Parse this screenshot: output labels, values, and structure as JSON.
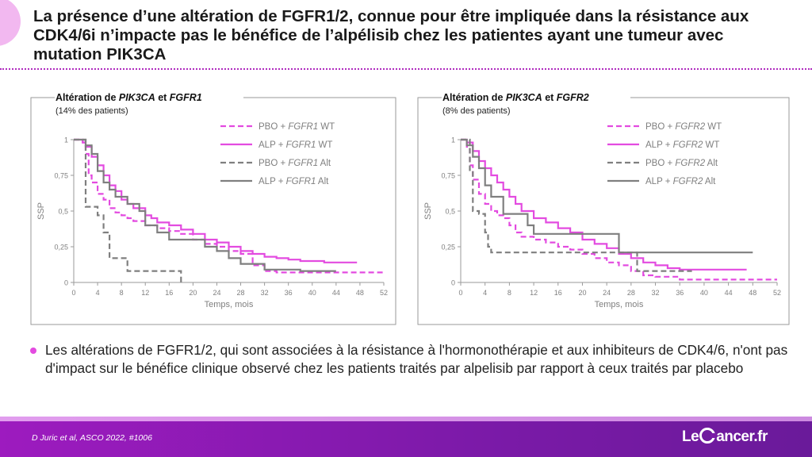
{
  "title": "La présence d’une altération de FGFR1/2, connue pour être impliquée dans la résistance aux CDK4/6i n’impacte pas le bénéfice de l’alpélisib chez les patientes ayant une tumeur avec mutation PIK3CA",
  "bullet": "Les altérations de FGFR1/2, qui sont associées à la résistance à l'hormonothérapie et aux inhibiteurs de CDK4/6, n'ont pas d'impact sur le bénéfice clinique observé chez les patients traités par alpelisib par rapport à ceux traités par placebo",
  "citation": "D Juric et al, ASCO 2022, #1006",
  "logo": {
    "left": "Le",
    "right": "ancer.fr"
  },
  "colors": {
    "pbo_wt": "#e34be0",
    "alp_wt": "#e34be0",
    "pbo_alt": "#7f7f7f",
    "alp_alt": "#7f7f7f",
    "accent": "#b02bbf",
    "footer": "#7b1aa8"
  },
  "chart_data": [
    {
      "type": "line",
      "title_parts": [
        [
          "Altération de ",
          false
        ],
        [
          "PIK3CA",
          true
        ],
        [
          " et ",
          false
        ],
        [
          "FGFR1",
          true
        ]
      ],
      "subtitle": "(14% des patients)",
      "xlabel": "Temps, mois",
      "ylabel": "SSP",
      "xlim": [
        0,
        52
      ],
      "ylim": [
        0,
        1
      ],
      "xticks": [
        "0",
        "4",
        "8",
        "12",
        "16",
        "20",
        "24",
        "28",
        "32",
        "36",
        "40",
        "44",
        "48",
        "52"
      ],
      "yticks": [
        "0",
        "0,25",
        "0,5",
        "0,75",
        "1"
      ],
      "legend_position": "top-right",
      "series": [
        {
          "name": "PBO + FGFR1 WT",
          "label_parts": [
            [
              "PBO + ",
              false
            ],
            [
              "FGFR1",
              true
            ],
            [
              " WT",
              false
            ]
          ],
          "style": "pbo_wt",
          "points": [
            [
              0,
              1
            ],
            [
              1.5,
              0.98
            ],
            [
              2,
              0.9
            ],
            [
              2.5,
              0.75
            ],
            [
              3,
              0.7
            ],
            [
              4,
              0.62
            ],
            [
              5,
              0.58
            ],
            [
              6,
              0.52
            ],
            [
              7,
              0.49
            ],
            [
              8,
              0.47
            ],
            [
              9,
              0.45
            ],
            [
              10,
              0.43
            ],
            [
              12,
              0.4
            ],
            [
              14,
              0.38
            ],
            [
              16,
              0.36
            ],
            [
              18,
              0.34
            ],
            [
              20,
              0.3
            ],
            [
              22,
              0.27
            ],
            [
              24,
              0.25
            ],
            [
              26,
              0.22
            ],
            [
              28,
              0.2
            ],
            [
              30,
              0.12
            ],
            [
              32,
              0.08
            ],
            [
              34,
              0.07
            ],
            [
              38,
              0.07
            ],
            [
              44,
              0.07
            ],
            [
              52,
              0.07
            ]
          ]
        },
        {
          "name": "ALP + FGFR1 WT",
          "label_parts": [
            [
              "ALP + ",
              false
            ],
            [
              "FGFR1",
              true
            ],
            [
              " WT",
              false
            ]
          ],
          "style": "alp_wt",
          "points": [
            [
              0,
              1
            ],
            [
              1.5,
              0.98
            ],
            [
              2,
              0.95
            ],
            [
              3,
              0.88
            ],
            [
              4,
              0.82
            ],
            [
              5,
              0.75
            ],
            [
              6,
              0.68
            ],
            [
              7,
              0.64
            ],
            [
              8,
              0.58
            ],
            [
              9,
              0.55
            ],
            [
              10,
              0.52
            ],
            [
              12,
              0.47
            ],
            [
              13,
              0.45
            ],
            [
              14,
              0.42
            ],
            [
              16,
              0.4
            ],
            [
              18,
              0.37
            ],
            [
              20,
              0.34
            ],
            [
              22,
              0.3
            ],
            [
              24,
              0.28
            ],
            [
              26,
              0.25
            ],
            [
              28,
              0.22
            ],
            [
              30,
              0.2
            ],
            [
              32,
              0.18
            ],
            [
              34,
              0.17
            ],
            [
              36,
              0.16
            ],
            [
              38,
              0.15
            ],
            [
              42,
              0.14
            ],
            [
              47.5,
              0.14
            ]
          ]
        },
        {
          "name": "PBO + FGFR1 Alt",
          "label_parts": [
            [
              "PBO + ",
              false
            ],
            [
              "FGFR1",
              true
            ],
            [
              " Alt",
              false
            ]
          ],
          "style": "pbo_alt",
          "points": [
            [
              0,
              1
            ],
            [
              1.5,
              1
            ],
            [
              2,
              0.53
            ],
            [
              4,
              0.53
            ],
            [
              4,
              0.47
            ],
            [
              5,
              0.35
            ],
            [
              6,
              0.17
            ],
            [
              9,
              0.08
            ],
            [
              13,
              0.08
            ],
            [
              18,
              0.08
            ],
            [
              18,
              0
            ]
          ]
        },
        {
          "name": "ALP + FGFR1 Alt",
          "label_parts": [
            [
              "ALP + ",
              false
            ],
            [
              "FGFR1",
              true
            ],
            [
              " Alt",
              false
            ]
          ],
          "style": "alp_alt",
          "points": [
            [
              0,
              1
            ],
            [
              2,
              0.96
            ],
            [
              3,
              0.9
            ],
            [
              4,
              0.78
            ],
            [
              5,
              0.7
            ],
            [
              6,
              0.65
            ],
            [
              7,
              0.6
            ],
            [
              9,
              0.55
            ],
            [
              11,
              0.5
            ],
            [
              12,
              0.4
            ],
            [
              14,
              0.35
            ],
            [
              16,
              0.3
            ],
            [
              20,
              0.3
            ],
            [
              22,
              0.25
            ],
            [
              24,
              0.22
            ],
            [
              26,
              0.17
            ],
            [
              28,
              0.13
            ],
            [
              30,
              0.13
            ],
            [
              32,
              0.09
            ],
            [
              34,
              0.09
            ],
            [
              38,
              0.08
            ],
            [
              44,
              0.08
            ]
          ]
        }
      ]
    },
    {
      "type": "line",
      "title_parts": [
        [
          "Altération de ",
          false
        ],
        [
          "PIK3CA",
          true
        ],
        [
          " et ",
          false
        ],
        [
          "FGFR2",
          true
        ]
      ],
      "subtitle": "(8% des patients)",
      "xlabel": "Temps, mois",
      "ylabel": "SSP",
      "xlim": [
        0,
        52
      ],
      "ylim": [
        0,
        1
      ],
      "xticks": [
        "0",
        "4",
        "8",
        "12",
        "16",
        "20",
        "24",
        "28",
        "32",
        "36",
        "40",
        "44",
        "48",
        "52"
      ],
      "yticks": [
        "0",
        "0,25",
        "0,5",
        "0,75",
        "1"
      ],
      "legend_position": "top-right",
      "series": [
        {
          "name": "PBO + FGFR2 WT",
          "label_parts": [
            [
              "PBO + ",
              false
            ],
            [
              "FGFR2",
              true
            ],
            [
              " WT",
              false
            ]
          ],
          "style": "pbo_wt",
          "points": [
            [
              0,
              1
            ],
            [
              1,
              0.95
            ],
            [
              1.5,
              0.82
            ],
            [
              2,
              0.72
            ],
            [
              3,
              0.62
            ],
            [
              4,
              0.55
            ],
            [
              5,
              0.5
            ],
            [
              6,
              0.47
            ],
            [
              7,
              0.45
            ],
            [
              8,
              0.4
            ],
            [
              9,
              0.35
            ],
            [
              10,
              0.32
            ],
            [
              12,
              0.3
            ],
            [
              14,
              0.28
            ],
            [
              16,
              0.25
            ],
            [
              18,
              0.23
            ],
            [
              20,
              0.2
            ],
            [
              22,
              0.17
            ],
            [
              24,
              0.14
            ],
            [
              26,
              0.12
            ],
            [
              28,
              0.08
            ],
            [
              30,
              0.05
            ],
            [
              32,
              0.04
            ],
            [
              36,
              0.02
            ],
            [
              44,
              0.02
            ],
            [
              52,
              0.02
            ]
          ]
        },
        {
          "name": "ALP + FGFR2 WT",
          "label_parts": [
            [
              "ALP + ",
              false
            ],
            [
              "FGFR2",
              true
            ],
            [
              " WT",
              false
            ]
          ],
          "style": "alp_wt",
          "points": [
            [
              0,
              1
            ],
            [
              1,
              0.98
            ],
            [
              2,
              0.92
            ],
            [
              3,
              0.85
            ],
            [
              4,
              0.8
            ],
            [
              5,
              0.75
            ],
            [
              6,
              0.7
            ],
            [
              7,
              0.65
            ],
            [
              8,
              0.6
            ],
            [
              9,
              0.55
            ],
            [
              10,
              0.5
            ],
            [
              12,
              0.45
            ],
            [
              14,
              0.42
            ],
            [
              16,
              0.38
            ],
            [
              18,
              0.35
            ],
            [
              20,
              0.3
            ],
            [
              22,
              0.27
            ],
            [
              24,
              0.24
            ],
            [
              26,
              0.2
            ],
            [
              28,
              0.17
            ],
            [
              30,
              0.14
            ],
            [
              32,
              0.12
            ],
            [
              34,
              0.1
            ],
            [
              36,
              0.09
            ],
            [
              40,
              0.09
            ],
            [
              47,
              0.09
            ]
          ]
        },
        {
          "name": "PBO + FGFR2 Alt",
          "label_parts": [
            [
              "PBO + ",
              false
            ],
            [
              "FGFR2",
              true
            ],
            [
              " Alt",
              false
            ]
          ],
          "style": "pbo_alt",
          "points": [
            [
              0,
              1
            ],
            [
              1,
              1
            ],
            [
              1.5,
              0.78
            ],
            [
              2,
              0.5
            ],
            [
              3,
              0.48
            ],
            [
              4,
              0.35
            ],
            [
              4.5,
              0.25
            ],
            [
              5,
              0.21
            ],
            [
              12,
              0.21
            ],
            [
              20,
              0.21
            ],
            [
              26,
              0.21
            ],
            [
              29,
              0.21
            ],
            [
              29,
              0.08
            ],
            [
              38,
              0.08
            ]
          ]
        },
        {
          "name": "ALP + FGFR2 Alt",
          "label_parts": [
            [
              "ALP + ",
              false
            ],
            [
              "FGFR2",
              true
            ],
            [
              " Alt",
              false
            ]
          ],
          "style": "alp_alt",
          "points": [
            [
              0,
              1
            ],
            [
              1,
              0.96
            ],
            [
              2,
              0.88
            ],
            [
              3,
              0.8
            ],
            [
              4,
              0.68
            ],
            [
              5,
              0.6
            ],
            [
              7,
              0.48
            ],
            [
              10,
              0.48
            ],
            [
              11,
              0.4
            ],
            [
              12,
              0.34
            ],
            [
              18,
              0.34
            ],
            [
              26,
              0.34
            ],
            [
              26,
              0.21
            ],
            [
              32,
              0.21
            ],
            [
              40,
              0.21
            ],
            [
              48,
              0.21
            ]
          ]
        }
      ]
    }
  ]
}
